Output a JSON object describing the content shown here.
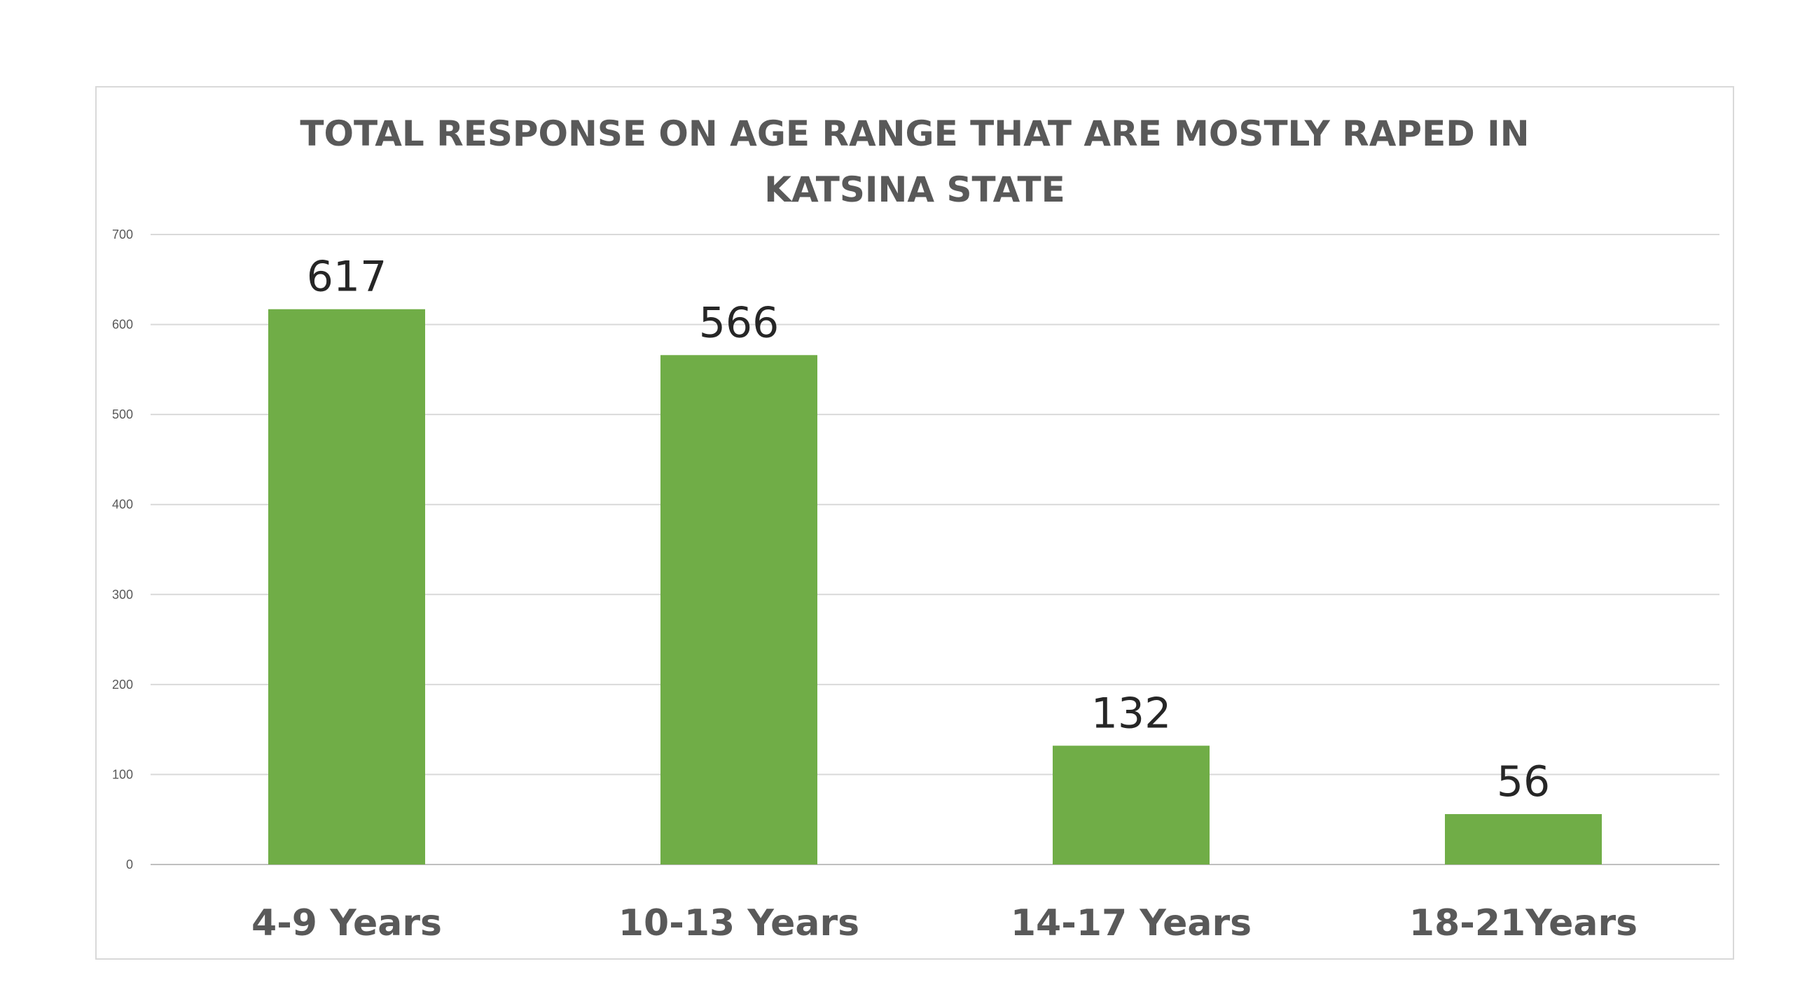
{
  "chart_data": {
    "type": "bar",
    "title": "TOTAL RESPONSE ON AGE RANGE THAT ARE MOSTLY RAPED  IN\nKATSINA STATE",
    "categories": [
      "4-9 Years",
      "10-13 Years",
      "14-17 Years",
      "18-21Years"
    ],
    "values": [
      617,
      566,
      132,
      56
    ],
    "data_labels": [
      "617",
      "566",
      "132",
      "56"
    ],
    "xlabel": "",
    "ylabel": "",
    "ylim": [
      0,
      700
    ],
    "yticks": [
      0,
      100,
      200,
      300,
      400,
      500,
      600,
      700
    ],
    "grid": true,
    "legend": "none",
    "bar_color": "#70ad47"
  }
}
